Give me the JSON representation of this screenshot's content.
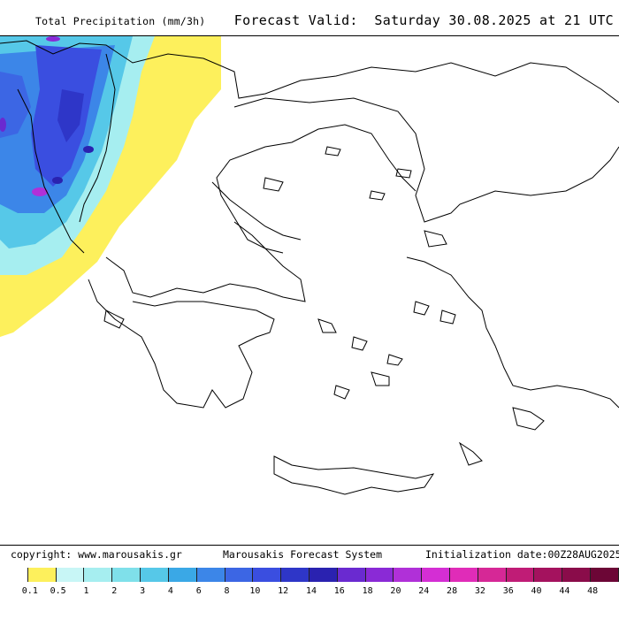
{
  "header": {
    "left_title": "Total Precipitation (mm/3h)",
    "right_title": "Forecast Valid:  Saturday 30.08.2025 at 21 UTC"
  },
  "footer": {
    "copyright": "copyright: www.marousakis.gr",
    "system": "Marousakis Forecast System",
    "init": "Initialization date:00Z28AUG2025"
  },
  "legend": {
    "colors": [
      "#ffffff",
      "#fdf05c",
      "#c8f6f6",
      "#a6eef0",
      "#7fe0ea",
      "#56c8e8",
      "#3aa8e6",
      "#3c86e8",
      "#3c66e4",
      "#3a4ee0",
      "#2e36c8",
      "#2a22b0",
      "#6a2ad0",
      "#8a2ad6",
      "#b030d8",
      "#d42ed4",
      "#e02cb8",
      "#d62896",
      "#c01c76",
      "#a4125e",
      "#8a0c4a",
      "#6c0636"
    ],
    "labels": [
      "0.1",
      "0.5",
      "1",
      "2",
      "3",
      "4",
      "6",
      "8",
      "10",
      "12",
      "14",
      "16",
      "18",
      "20",
      "24",
      "28",
      "32",
      "36",
      "40",
      "44",
      "48"
    ]
  }
}
